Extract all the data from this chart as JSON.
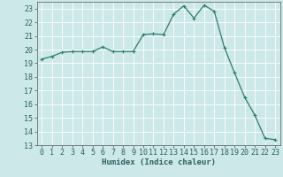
{
  "x": [
    0,
    1,
    2,
    3,
    4,
    5,
    6,
    7,
    8,
    9,
    10,
    11,
    12,
    13,
    14,
    15,
    16,
    17,
    18,
    19,
    20,
    21,
    22,
    23
  ],
  "y": [
    19.3,
    19.5,
    19.8,
    19.85,
    19.85,
    19.85,
    20.2,
    19.85,
    19.85,
    19.85,
    21.1,
    21.15,
    21.1,
    22.6,
    23.2,
    22.3,
    23.25,
    22.8,
    20.15,
    18.3,
    16.5,
    15.2,
    13.5,
    13.4
  ],
  "line_color": "#2e7d6e",
  "marker": "+",
  "marker_size": 3,
  "bg_color": "#cce8e8",
  "grid_color": "#b0d8d8",
  "xlabel": "Humidex (Indice chaleur)",
  "ylim": [
    13,
    23.5
  ],
  "xlim": [
    -0.5,
    23.5
  ],
  "yticks": [
    13,
    14,
    15,
    16,
    17,
    18,
    19,
    20,
    21,
    22,
    23
  ],
  "xticks": [
    0,
    1,
    2,
    3,
    4,
    5,
    6,
    7,
    8,
    9,
    10,
    11,
    12,
    13,
    14,
    15,
    16,
    17,
    18,
    19,
    20,
    21,
    22,
    23
  ],
  "xlabel_fontsize": 6.5,
  "tick_fontsize": 6
}
